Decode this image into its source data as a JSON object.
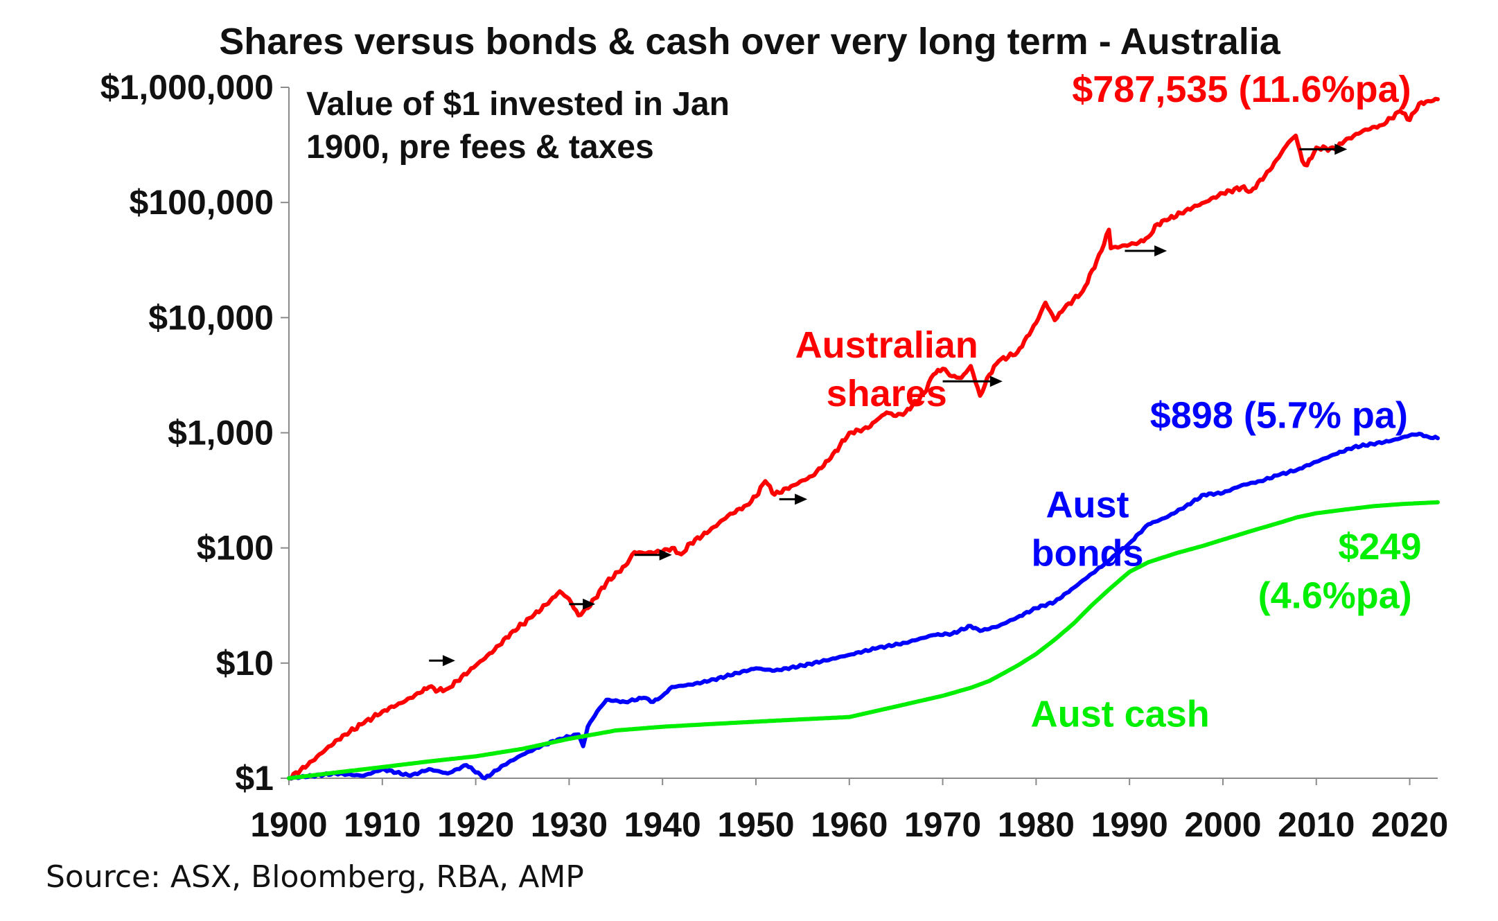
{
  "source_note": "Source: ASX, Bloomberg, RBA, AMP",
  "chart_data": {
    "type": "line",
    "title": "Shares versus bonds & cash over very long term - Australia",
    "subtitle_lines": [
      "Value of $1 invested in Jan",
      "1900, pre fees & taxes"
    ],
    "xlabel": "",
    "ylabel": "",
    "y_scale": "log",
    "xlim": [
      1900,
      2023
    ],
    "ylim": [
      1,
      1000000
    ],
    "x_ticks": [
      1900,
      1910,
      1920,
      1930,
      1940,
      1950,
      1960,
      1970,
      1980,
      1990,
      2000,
      2010,
      2020
    ],
    "x_tick_labels": [
      "1900",
      "1910",
      "1920",
      "1930",
      "1940",
      "1950",
      "1960",
      "1970",
      "1980",
      "1990",
      "2000",
      "2010",
      "2020"
    ],
    "y_ticks": [
      1,
      10,
      100,
      1000,
      10000,
      100000,
      1000000
    ],
    "y_tick_labels": [
      "$1",
      "$10",
      "$100",
      "$1,000",
      "$10,000",
      "$100,000",
      "$1,000,000"
    ],
    "grid": false,
    "legend": "none",
    "series": [
      {
        "name": "Australian shares",
        "color": "#ff0000",
        "points": [
          [
            1900,
            1
          ],
          [
            1902,
            1.3
          ],
          [
            1904,
            1.8
          ],
          [
            1906,
            2.4
          ],
          [
            1908,
            3.0
          ],
          [
            1910,
            3.8
          ],
          [
            1912,
            4.5
          ],
          [
            1914,
            5.5
          ],
          [
            1915,
            6.2
          ],
          [
            1916,
            5.8
          ],
          [
            1917,
            6.0
          ],
          [
            1918,
            7.0
          ],
          [
            1920,
            9.5
          ],
          [
            1922,
            13
          ],
          [
            1924,
            19
          ],
          [
            1926,
            25
          ],
          [
            1928,
            35
          ],
          [
            1929,
            42
          ],
          [
            1930,
            36
          ],
          [
            1931,
            26
          ],
          [
            1932,
            30
          ],
          [
            1934,
            50
          ],
          [
            1936,
            70
          ],
          [
            1937,
            92
          ],
          [
            1938,
            90
          ],
          [
            1940,
            93
          ],
          [
            1941,
            100
          ],
          [
            1942,
            88
          ],
          [
            1943,
            110
          ],
          [
            1945,
            140
          ],
          [
            1947,
            190
          ],
          [
            1949,
            235
          ],
          [
            1950,
            280
          ],
          [
            1951,
            380
          ],
          [
            1952,
            290
          ],
          [
            1954,
            350
          ],
          [
            1956,
            420
          ],
          [
            1958,
            600
          ],
          [
            1960,
            1000
          ],
          [
            1961,
            1050
          ],
          [
            1962,
            1100
          ],
          [
            1963,
            1300
          ],
          [
            1964,
            1500
          ],
          [
            1965,
            1400
          ],
          [
            1966,
            1500
          ],
          [
            1968,
            2200
          ],
          [
            1969,
            3200
          ],
          [
            1970,
            3600
          ],
          [
            1971,
            3100
          ],
          [
            1972,
            3000
          ],
          [
            1973,
            3800
          ],
          [
            1974,
            2100
          ],
          [
            1975,
            3200
          ],
          [
            1976,
            4200
          ],
          [
            1978,
            5000
          ],
          [
            1980,
            9000
          ],
          [
            1981,
            13500
          ],
          [
            1982,
            9500
          ],
          [
            1983,
            12000
          ],
          [
            1985,
            17000
          ],
          [
            1987,
            38000
          ],
          [
            1987.8,
            58000
          ],
          [
            1988,
            40000
          ],
          [
            1990,
            43000
          ],
          [
            1991,
            45000
          ],
          [
            1992,
            50000
          ],
          [
            1993,
            65000
          ],
          [
            1994,
            70000
          ],
          [
            1996,
            85000
          ],
          [
            1998,
            100000
          ],
          [
            2000,
            120000
          ],
          [
            2002,
            135000
          ],
          [
            2003,
            125000
          ],
          [
            2005,
            190000
          ],
          [
            2007,
            330000
          ],
          [
            2007.8,
            380000
          ],
          [
            2008.5,
            230000
          ],
          [
            2009,
            210000
          ],
          [
            2010,
            300000
          ],
          [
            2012,
            290000
          ],
          [
            2013,
            340000
          ],
          [
            2015,
            420000
          ],
          [
            2017,
            470000
          ],
          [
            2019,
            620000
          ],
          [
            2020,
            520000
          ],
          [
            2021,
            720000
          ],
          [
            2022,
            760000
          ],
          [
            2023,
            787535
          ]
        ]
      },
      {
        "name": "Aust bonds",
        "color": "#0000ff",
        "points": [
          [
            1900,
            1
          ],
          [
            1905,
            1.1
          ],
          [
            1908,
            1.05
          ],
          [
            1910,
            1.2
          ],
          [
            1913,
            1.05
          ],
          [
            1915,
            1.2
          ],
          [
            1917,
            1.1
          ],
          [
            1919,
            1.3
          ],
          [
            1921,
            1.0
          ],
          [
            1923,
            1.3
          ],
          [
            1925,
            1.6
          ],
          [
            1927,
            1.9
          ],
          [
            1929,
            2.2
          ],
          [
            1931,
            2.4
          ],
          [
            1931.5,
            1.9
          ],
          [
            1932,
            2.8
          ],
          [
            1933,
            3.8
          ],
          [
            1934,
            4.8
          ],
          [
            1936,
            4.6
          ],
          [
            1938,
            5.0
          ],
          [
            1939,
            4.6
          ],
          [
            1940,
            5.2
          ],
          [
            1941,
            6.2
          ],
          [
            1943,
            6.5
          ],
          [
            1945,
            7.0
          ],
          [
            1948,
            8.2
          ],
          [
            1950,
            9.0
          ],
          [
            1952,
            8.6
          ],
          [
            1955,
            9.5
          ],
          [
            1958,
            10.8
          ],
          [
            1960,
            11.8
          ],
          [
            1963,
            13.5
          ],
          [
            1966,
            15.0
          ],
          [
            1969,
            17.5
          ],
          [
            1971,
            18
          ],
          [
            1973,
            21
          ],
          [
            1974,
            19
          ],
          [
            1976,
            21
          ],
          [
            1978,
            25
          ],
          [
            1980,
            30
          ],
          [
            1982,
            34
          ],
          [
            1984,
            45
          ],
          [
            1986,
            60
          ],
          [
            1988,
            80
          ],
          [
            1990,
            110
          ],
          [
            1992,
            160
          ],
          [
            1994,
            185
          ],
          [
            1996,
            230
          ],
          [
            1998,
            290
          ],
          [
            2000,
            300
          ],
          [
            2002,
            350
          ],
          [
            2004,
            380
          ],
          [
            2006,
            430
          ],
          [
            2008,
            480
          ],
          [
            2010,
            560
          ],
          [
            2012,
            650
          ],
          [
            2014,
            750
          ],
          [
            2016,
            800
          ],
          [
            2018,
            850
          ],
          [
            2020,
            950
          ],
          [
            2021,
            980
          ],
          [
            2022,
            920
          ],
          [
            2023,
            898
          ]
        ]
      },
      {
        "name": "Aust cash",
        "color": "#00ee00",
        "points": [
          [
            1900,
            1
          ],
          [
            1905,
            1.12
          ],
          [
            1910,
            1.25
          ],
          [
            1915,
            1.4
          ],
          [
            1920,
            1.55
          ],
          [
            1925,
            1.8
          ],
          [
            1930,
            2.2
          ],
          [
            1935,
            2.6
          ],
          [
            1940,
            2.8
          ],
          [
            1945,
            2.95
          ],
          [
            1950,
            3.1
          ],
          [
            1955,
            3.25
          ],
          [
            1960,
            3.4
          ],
          [
            1965,
            4.2
          ],
          [
            1970,
            5.2
          ],
          [
            1973,
            6.1
          ],
          [
            1975,
            7.0
          ],
          [
            1978,
            9.5
          ],
          [
            1980,
            12
          ],
          [
            1982,
            16
          ],
          [
            1984,
            22
          ],
          [
            1986,
            32
          ],
          [
            1988,
            45
          ],
          [
            1990,
            62
          ],
          [
            1992,
            75
          ],
          [
            1995,
            90
          ],
          [
            1998,
            105
          ],
          [
            2000,
            118
          ],
          [
            2003,
            140
          ],
          [
            2006,
            165
          ],
          [
            2008,
            185
          ],
          [
            2010,
            200
          ],
          [
            2013,
            215
          ],
          [
            2016,
            230
          ],
          [
            2019,
            240
          ],
          [
            2021,
            245
          ],
          [
            2023,
            249
          ]
        ]
      }
    ],
    "annotations": [
      {
        "text": "$787,535 (11.6%pa)",
        "color": "#ff0000",
        "anchor_x": 2002,
        "anchor_y": 750000
      },
      {
        "text": "Australian",
        "color": "#ff0000",
        "anchor_x": 1964,
        "anchor_y": 4500
      },
      {
        "text": "shares",
        "color": "#ff0000",
        "anchor_x": 1964,
        "anchor_y": 1700
      },
      {
        "text": "$898 (5.7% pa)",
        "color": "#0000ff",
        "anchor_x": 2006,
        "anchor_y": 1100
      },
      {
        "text": "Aust",
        "color": "#0000ff",
        "anchor_x": 1985.5,
        "anchor_y": 185
      },
      {
        "text": "bonds",
        "color": "#0000ff",
        "anchor_x": 1985.5,
        "anchor_y": 70
      },
      {
        "text": "$249",
        "color": "#00ee00",
        "anchor_x": 2016.8,
        "anchor_y": 80
      },
      {
        "text": "(4.6%pa)",
        "color": "#00ee00",
        "anchor_x": 2012,
        "anchor_y": 30
      },
      {
        "text": "Aust cash",
        "color": "#00ee00",
        "anchor_x": 1989,
        "anchor_y": 2.8
      }
    ],
    "arrows": [
      [
        1915,
        1917.8,
        10.5
      ],
      [
        1930,
        1932.8,
        32.5
      ],
      [
        1937,
        1941,
        87
      ],
      [
        1952.5,
        1955.5,
        265
      ],
      [
        1970,
        1976.4,
        2800
      ],
      [
        1989.5,
        1994,
        38000
      ],
      [
        2008.2,
        2013.3,
        290000
      ]
    ]
  }
}
